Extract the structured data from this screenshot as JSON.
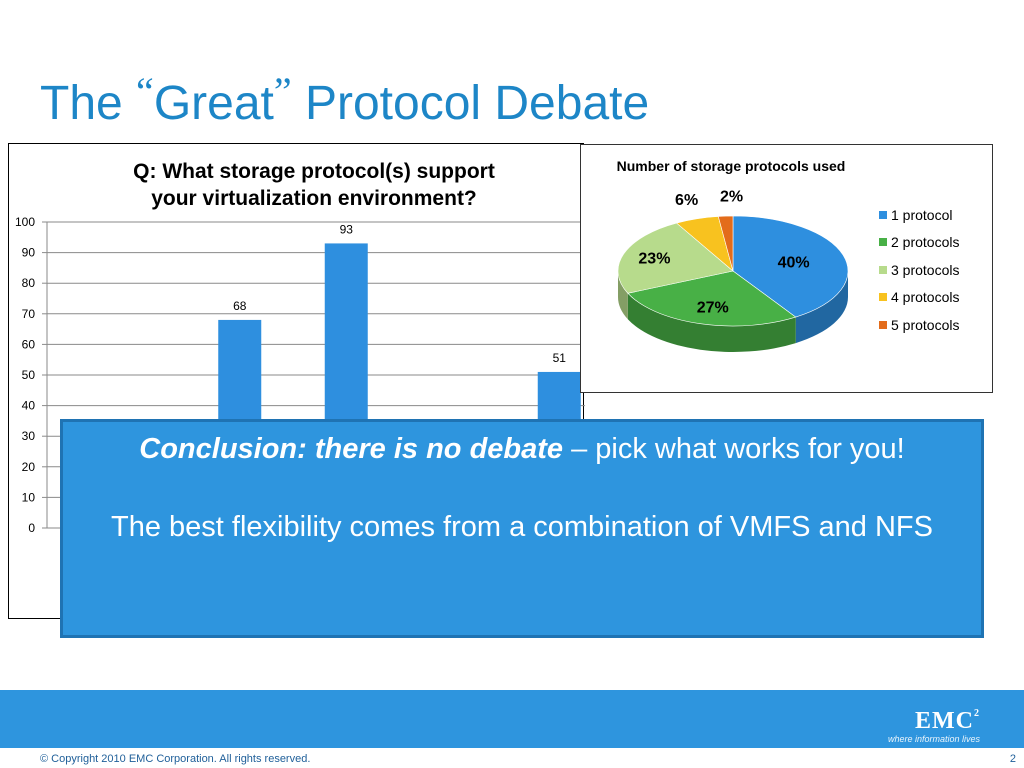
{
  "slide": {
    "title_pre": "The ",
    "quote_open": "“",
    "title_word": "Great",
    "quote_close": "”",
    "title_post": " Protocol Debate"
  },
  "chart_data": [
    {
      "type": "bar",
      "title_line1": "Q: What storage protocol(s) support",
      "title_line2": "your virtualization environment?",
      "categories": [
        "",
        "",
        "",
        "",
        ""
      ],
      "values": [
        null,
        68,
        93,
        null,
        51
      ],
      "data_labels": [
        "",
        "68",
        "93",
        "",
        "51"
      ],
      "yticks": [
        "0",
        "10",
        "20",
        "30",
        "40",
        "50",
        "60",
        "70",
        "80",
        "90",
        "100"
      ],
      "ylim": [
        0,
        100
      ],
      "grid": true,
      "color": "#2e8fdf"
    },
    {
      "type": "pie",
      "title": "Number of storage protocols used",
      "labels": [
        "1 protocol",
        "2 protocols",
        "3 protocols",
        "4 protocols",
        "5 protocols"
      ],
      "values": [
        40,
        27,
        23,
        6,
        2
      ],
      "value_labels": [
        "40%",
        "27%",
        "23%",
        "6%",
        "2%"
      ],
      "colors": [
        "#2e8fdf",
        "#48b046",
        "#b7db8c",
        "#f8c21f",
        "#e36c1b"
      ],
      "legend": "right"
    }
  ],
  "conclusion": {
    "bold": "Conclusion: there is no debate",
    "rest": " – pick what works for you!",
    "line2": "The best flexibility comes from a combination of VMFS and NFS"
  },
  "footer": {
    "logo": "EMC",
    "logo_sup": "2",
    "tagline": "where information lives",
    "copyright": "© Copyright 2010 EMC Corporation. All rights reserved.",
    "page": "2"
  }
}
